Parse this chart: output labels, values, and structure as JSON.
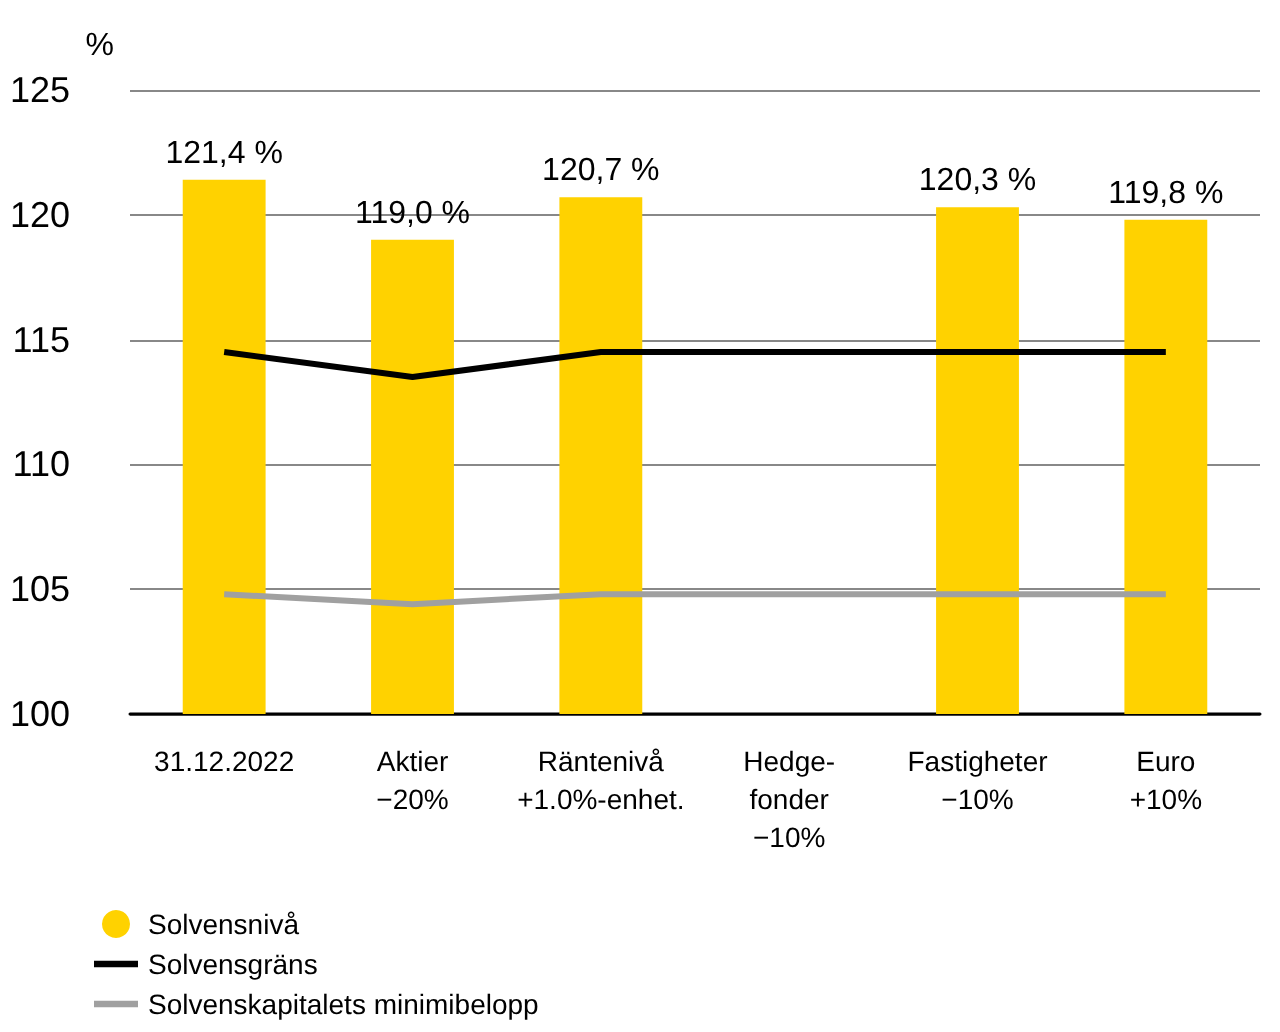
{
  "chart_data": {
    "type": "bar",
    "ylabel": "%",
    "categories": [
      "31.12.2022",
      "Aktier\n−20%",
      "Räntenivå\n+1.0%-enhet.",
      "Hedge-\nfonder\n−10%",
      "Fastigheter\n−10%",
      "Euro\n+10%"
    ],
    "series": [
      {
        "name": "Solvensnivå",
        "color": "#ffd200",
        "values": [
          121.4,
          119.0,
          120.7,
          null,
          120.3,
          119.8
        ],
        "value_labels": [
          "121,4 %",
          "119,0 %",
          "120,7 %",
          null,
          "120,3 %",
          "119,8 %"
        ]
      },
      {
        "name": "Solvensgräns",
        "type": "line",
        "color": "#000000",
        "values": [
          114.5,
          113.5,
          114.5,
          null,
          114.5,
          114.5
        ]
      },
      {
        "name": "Solvenskapitalets minimibelopp",
        "type": "line",
        "color": "#a0a0a0",
        "values": [
          104.8,
          104.4,
          104.8,
          null,
          104.8,
          104.8
        ]
      }
    ],
    "ylim": [
      100,
      125
    ],
    "yticks": [
      100,
      105,
      110,
      115,
      120,
      125
    ],
    "grid": "y",
    "legend": "bottom left",
    "marker": "none"
  }
}
